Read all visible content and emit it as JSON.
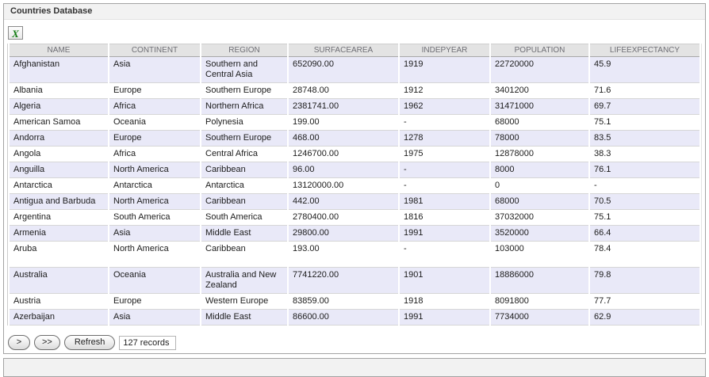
{
  "panel": {
    "title": "Countries Database"
  },
  "toolbar": {
    "excel_icon_glyph": "X",
    "excel_icon_name": "excel-export-icon"
  },
  "table": {
    "columns": [
      "NAME",
      "CONTINENT",
      "REGION",
      "SURFACEAREA",
      "INDEPYEAR",
      "POPULATION",
      "LIFEEXPECTANCY"
    ],
    "rows": [
      [
        "Afghanistan",
        "Asia",
        "Southern and Central Asia",
        "652090.00",
        "1919",
        "22720000",
        "45.9"
      ],
      [
        "Albania",
        "Europe",
        "Southern Europe",
        "28748.00",
        "1912",
        "3401200",
        "71.6"
      ],
      [
        "Algeria",
        "Africa",
        "Northern Africa",
        "2381741.00",
        "1962",
        "31471000",
        "69.7"
      ],
      [
        "American Samoa",
        "Oceania",
        "Polynesia",
        "199.00",
        "-",
        "68000",
        "75.1"
      ],
      [
        "Andorra",
        "Europe",
        "Southern Europe",
        "468.00",
        "1278",
        "78000",
        "83.5"
      ],
      [
        "Angola",
        "Africa",
        "Central Africa",
        "1246700.00",
        "1975",
        "12878000",
        "38.3"
      ],
      [
        "Anguilla",
        "North America",
        "Caribbean",
        "96.00",
        "-",
        "8000",
        "76.1"
      ],
      [
        "Antarctica",
        "Antarctica",
        "Antarctica",
        "13120000.00",
        "-",
        "0",
        "-"
      ],
      [
        "Antigua and Barbuda",
        "North America",
        "Caribbean",
        "442.00",
        "1981",
        "68000",
        "70.5"
      ],
      [
        "Argentina",
        "South America",
        "South America",
        "2780400.00",
        "1816",
        "37032000",
        "75.1"
      ],
      [
        "Armenia",
        "Asia",
        "Middle East",
        "29800.00",
        "1991",
        "3520000",
        "66.4"
      ],
      [
        "Aruba",
        "North America",
        "Caribbean",
        "193.00",
        "-",
        "103000",
        "78.4"
      ],
      [
        "Australia",
        "Oceania",
        "Australia and New Zealand",
        "7741220.00",
        "1901",
        "18886000",
        "79.8"
      ],
      [
        "Austria",
        "Europe",
        "Western Europe",
        "83859.00",
        "1918",
        "8091800",
        "77.7"
      ],
      [
        "Azerbaijan",
        "Asia",
        "Middle East",
        "86600.00",
        "1991",
        "7734000",
        "62.9"
      ]
    ]
  },
  "pager": {
    "next_label": ">",
    "last_label": ">>",
    "refresh_label": "Refresh",
    "records_value": "127 records"
  },
  "colors": {
    "zebra_row": "#e9e9f8",
    "header_row_bg": "#e3e3e3",
    "panel_title_bg": "#f2f2f2",
    "excel_green": "#117a11",
    "border_gray": "#a3a3a3"
  }
}
